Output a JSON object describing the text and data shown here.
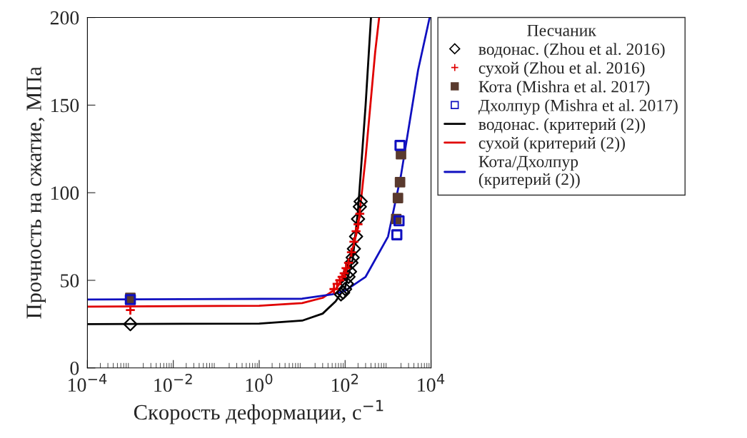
{
  "chart_data": {
    "type": "scatter",
    "xlabel": "Скорость деформации, с$^{−1}$",
    "ylabel": "Прочность на сжатие, МПа",
    "legend_title": "Песчаник",
    "legend": "right",
    "log": "x",
    "grid": false,
    "xlim": [
      0.0001,
      10000
    ],
    "xticks": [
      {
        "value": 0.0001,
        "label": "10$^{−4}$"
      },
      {
        "value": 0.01,
        "label": "10$^{−2}$"
      },
      {
        "value": 1,
        "label": "10$^{0}$"
      },
      {
        "value": 100,
        "label": "10$^{2}$"
      },
      {
        "value": 10000,
        "label": "10$^{4}$"
      }
    ],
    "ylim": [
      0,
      200
    ],
    "yticks": [
      0,
      50,
      100,
      150,
      200
    ],
    "series": [
      {
        "name": "водонас. (Zhou et al. 2016)",
        "marker": "diamond",
        "color": "#000000",
        "x": [
          0.001,
          80,
          90,
          100,
          110,
          120,
          130,
          140,
          150,
          160,
          180,
          200,
          220,
          230
        ],
        "values": [
          25,
          42,
          43,
          45,
          48,
          52,
          55,
          60,
          63,
          68,
          75,
          85,
          92,
          95
        ]
      },
      {
        "name": "сухой (Zhou et al. 2016)",
        "marker": "cross",
        "color": "#e00000",
        "x": [
          0.001,
          55,
          65,
          75,
          85,
          95,
          105,
          120,
          140,
          160,
          180,
          200,
          220
        ],
        "values": [
          33,
          45,
          48,
          50,
          52,
          54,
          57,
          60,
          66,
          72,
          78,
          82,
          88
        ]
      },
      {
        "name": "Кота (Mishra et al. 2017)",
        "marker": "square",
        "color": "#5a3a2e",
        "x": [
          0.001,
          1550,
          1700,
          1900,
          2000
        ],
        "values": [
          40,
          85,
          97,
          106,
          122
        ]
      },
      {
        "name": "Дхолпур (Mishra et al. 2017)",
        "marker": "square",
        "color": "#1010c0",
        "x": [
          0.001,
          1600,
          1800,
          1900
        ],
        "values": [
          39,
          76,
          84,
          127
        ]
      },
      {
        "name": "водонас. (критерий (2))",
        "type": "line",
        "color": "#000000",
        "x": [
          0.0001,
          1,
          10,
          30,
          60,
          100,
          150,
          200,
          300,
          400
        ],
        "values": [
          25,
          25.3,
          27,
          31,
          38,
          46,
          62,
          90,
          150,
          200
        ]
      },
      {
        "name": "сухой (критерий (2))",
        "type": "line",
        "color": "#e00000",
        "x": [
          0.0001,
          1,
          10,
          30,
          60,
          100,
          200,
          300,
          500,
          620
        ],
        "values": [
          35,
          35.5,
          37,
          40,
          45,
          52,
          80,
          120,
          180,
          200
        ]
      },
      {
        "name": "Кота/Дхолпур\n(критерий (2))",
        "type": "line",
        "color": "#1010c0",
        "x": [
          0.0001,
          10,
          50,
          100,
          300,
          1000,
          2000,
          5000,
          9300
        ],
        "values": [
          39,
          39.5,
          42,
          44,
          52,
          75,
          110,
          170,
          200
        ]
      }
    ]
  }
}
